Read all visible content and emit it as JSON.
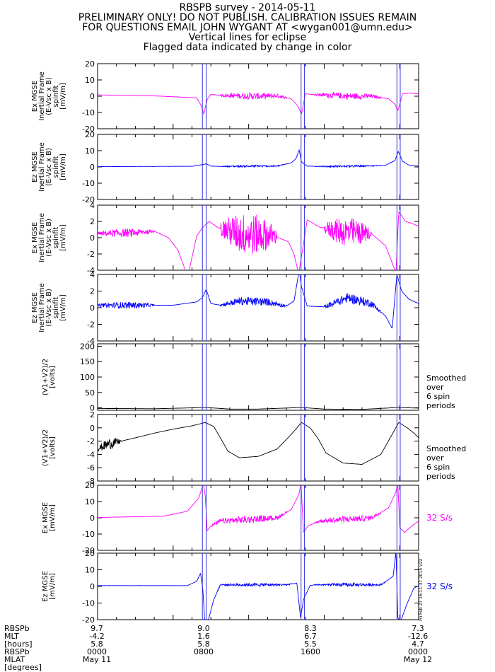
{
  "header": {
    "line1": "RBSPB survey - 2014-05-11",
    "line2": "PRELIMINARY ONLY! DO NOT PUBLISH. CALIBRATION ISSUES REMAIN",
    "line3": "FOR QUESTIONS EMAIL JOHN WYGANT AT <wygan001@umn.edu>",
    "line4": "Vertical lines for eclipse",
    "line5": "Flagged data indicated by change in color"
  },
  "colors": {
    "magenta": "#ff00ff",
    "blue": "#0000ff",
    "black": "#000000",
    "eclipse": "#3333dd"
  },
  "stamp": "Fri Feb 27 16:11:37 2015 v22",
  "eclipse_hours": [
    [
      11.1,
      11.5
    ],
    [
      21.55,
      21.9
    ],
    [
      31.7,
      32.05
    ]
  ],
  "chart_data": [
    {
      "type": "line",
      "ylabel": [
        "Ex MGSE",
        "Inertial Frame",
        "(E-Vsc x B)",
        "spinfit",
        "[mV/m]"
      ],
      "yticks": [
        "20",
        "10",
        "0",
        "-10",
        "-20"
      ],
      "ylim": [
        -20,
        20
      ],
      "color": "magenta",
      "x_hours": [
        0,
        6,
        10.5,
        11.0,
        11.25,
        11.6,
        12.0,
        13,
        17,
        19,
        20.5,
        21.2,
        21.6,
        22.0,
        23,
        27,
        29,
        30.8,
        31.5,
        31.8,
        32.3,
        33,
        34
      ],
      "y": [
        0.8,
        0.2,
        -1.0,
        -6.0,
        -11.0,
        -2.0,
        1.2,
        0.5,
        0.0,
        0.2,
        -1.5,
        -6.0,
        -11.0,
        1.5,
        1.0,
        0.0,
        0.0,
        -1.5,
        -5.0,
        -9.0,
        1.5,
        2.0,
        1.5
      ],
      "noise": [
        [
          13,
          20,
          2.0
        ],
        [
          23,
          30,
          2.0
        ]
      ]
    },
    {
      "type": "line",
      "ylabel": [
        "Ez MGSE",
        "Inertial Frame",
        "(E-Vsc x B)",
        "spinfit",
        "[mV/m]"
      ],
      "yticks": [
        "20",
        "10",
        "0",
        "-10",
        "-20"
      ],
      "ylim": [
        -20,
        20
      ],
      "color": "blue",
      "x_hours": [
        0,
        10,
        11.2,
        11.5,
        12.0,
        13,
        17,
        19,
        20.5,
        21.0,
        21.35,
        21.6,
        22.2,
        24,
        28,
        30.5,
        31.5,
        31.85,
        32.3,
        33,
        34
      ],
      "y": [
        0.2,
        0.4,
        1.5,
        2.0,
        0.5,
        0.3,
        0.5,
        0.5,
        2.5,
        5.0,
        10.5,
        3.0,
        0.5,
        0.3,
        0.5,
        1.0,
        4.0,
        9.5,
        3.5,
        1.0,
        0.5
      ],
      "noise": [
        [
          13,
          20,
          0.6
        ],
        [
          23,
          30,
          0.6
        ]
      ]
    },
    {
      "type": "line",
      "ylabel": [
        "Ex MGSE",
        "Inertial Frame",
        "(E-Vsc x B)",
        "spinfit",
        "[mV/m]"
      ],
      "yticks": [
        "4",
        "2",
        "0",
        "-2",
        "-4"
      ],
      "ylim": [
        -4,
        4
      ],
      "color": "magenta",
      "x_hours": [
        0,
        4,
        6,
        7.5,
        8.5,
        9.3,
        9.6,
        10.5,
        11.1,
        11.8,
        12.8,
        15,
        18.5,
        20.2,
        20.8,
        21.3,
        22.2,
        23.5,
        26,
        29,
        30.5,
        31.0,
        31.6,
        31.9,
        32.6,
        33.2,
        34
      ],
      "y": [
        0.5,
        0.6,
        0.8,
        0.0,
        -1.5,
        -4.0,
        -4.5,
        0.2,
        1.2,
        2.0,
        1.2,
        0.5,
        0.3,
        -0.5,
        -2.0,
        -4.5,
        2.2,
        1.3,
        0.7,
        0.5,
        -1.0,
        -2.5,
        -4.3,
        3.2,
        2.0,
        1.8,
        1.4
      ],
      "noise": [
        [
          0,
          6,
          0.5
        ],
        [
          13,
          19,
          2.6
        ],
        [
          24,
          29,
          1.8
        ]
      ]
    },
    {
      "type": "line",
      "ylabel": [
        "Ez MGSE",
        "Inertial Frame",
        "(E-Vsc x B)",
        "spinfit",
        "[mV/m]"
      ],
      "yticks": [
        "4",
        "2",
        "0",
        "-2",
        "-4"
      ],
      "ylim": [
        -4,
        4
      ],
      "color": "blue",
      "x_hours": [
        0,
        8,
        10.5,
        11.1,
        11.5,
        12.0,
        13,
        15,
        18,
        20.0,
        20.8,
        21.35,
        21.6,
        22.2,
        24,
        26.5,
        29,
        30.5,
        31.2,
        31.7,
        32.2,
        33,
        34
      ],
      "y": [
        0.3,
        0.3,
        0.7,
        1.2,
        2.2,
        0.5,
        0.3,
        0.8,
        0.7,
        0.2,
        0.8,
        4.5,
        2.5,
        0.2,
        0.1,
        1.2,
        0.5,
        -1.0,
        -2.5,
        4.0,
        2.0,
        1.0,
        0.5
      ],
      "noise": [
        [
          0,
          6,
          0.4
        ],
        [
          13,
          20,
          0.5
        ],
        [
          24,
          30,
          0.6
        ]
      ]
    },
    {
      "type": "line",
      "ylabel": [
        "(V1+V2)/2",
        "[volts]"
      ],
      "yticks": [
        "200",
        "150",
        "100",
        "50",
        "0"
      ],
      "ylim": [
        -8,
        208
      ],
      "color": "black",
      "note": [
        "Smoothed",
        "over",
        "6 spin",
        "periods"
      ],
      "x_hours": [
        0,
        6,
        11.5,
        14,
        17,
        21.6,
        24,
        28,
        31.8,
        34
      ],
      "y": [
        -2,
        -3,
        1,
        -4,
        -4,
        1,
        -4,
        -5,
        1,
        -1
      ],
      "noise": []
    },
    {
      "type": "line",
      "ylabel": [
        "(V1+V2)/2",
        "[volts]"
      ],
      "yticks": [
        "2",
        "0",
        "-2",
        "-4",
        "-6",
        "-8"
      ],
      "ylim": [
        -8,
        2
      ],
      "color": "black",
      "note": [
        "Smoothed",
        "over",
        "6 spin",
        "periods"
      ],
      "x_hours": [
        0,
        1,
        2.5,
        4,
        6,
        8,
        10,
        11.4,
        12.3,
        13.0,
        13.8,
        15,
        17,
        19,
        20.5,
        21.6,
        22.5,
        23.3,
        24.2,
        26,
        28,
        30,
        31.9,
        32.8,
        33.5,
        34
      ],
      "y": [
        -3.2,
        -2.5,
        -2.0,
        -1.5,
        -0.8,
        -0.2,
        0.3,
        0.8,
        0.2,
        -1.5,
        -3.5,
        -4.5,
        -4.3,
        -3.2,
        -1.0,
        0.8,
        0.0,
        -1.5,
        -3.8,
        -5.3,
        -5.5,
        -4.0,
        0.8,
        0.0,
        -0.8,
        -1.5
      ],
      "noise": [
        [
          0,
          2.5,
          0.8
        ]
      ]
    },
    {
      "type": "line",
      "ylabel": [
        "Ex MGSE",
        "[mV/m]"
      ],
      "yticks": [
        "20",
        "10",
        "0",
        "-10",
        "-20"
      ],
      "ylim": [
        -20,
        20
      ],
      "color": "magenta",
      "note": [
        "32 S/s"
      ],
      "x_hours": [
        0,
        7,
        9.5,
        10.7,
        11.2,
        11.4,
        11.6,
        12.0,
        13,
        19,
        20.5,
        21.3,
        21.55,
        21.8,
        22.3,
        23.5,
        29,
        30.8,
        31.6,
        31.8,
        32.0,
        32.5,
        33.5,
        34
      ],
      "y": [
        0.2,
        1.0,
        4.0,
        12.0,
        21.0,
        14.0,
        -8.0,
        -5.0,
        -2.0,
        0.0,
        5.0,
        14.0,
        21.0,
        -9.0,
        -5.0,
        -2.0,
        0.0,
        6.0,
        16.0,
        21.0,
        -6.0,
        -9.0,
        -4.0,
        -2.0
      ],
      "noise": [
        [
          12,
          20,
          2.2
        ],
        [
          23,
          30,
          2.0
        ]
      ]
    },
    {
      "type": "line",
      "ylabel": [
        "Ez MGSE",
        "[mV/m]"
      ],
      "yticks": [
        "20",
        "10",
        "0",
        "-10",
        "-20"
      ],
      "ylim": [
        -20,
        20
      ],
      "color": "blue",
      "note": [
        "32 S/s"
      ],
      "x_hours": [
        0,
        9.5,
        10.5,
        10.9,
        11.15,
        11.35,
        11.7,
        12.3,
        13,
        20,
        21.1,
        21.5,
        21.8,
        22.5,
        23,
        30,
        31.3,
        31.6,
        31.8,
        32.1,
        32.8,
        33.5,
        34
      ],
      "y": [
        0.5,
        0.5,
        3.0,
        8.0,
        -2.0,
        -21.0,
        -21.0,
        -8.0,
        1.0,
        1.0,
        2.0,
        -19.0,
        -8.0,
        0.5,
        1.0,
        1.0,
        6.0,
        21.0,
        -19.0,
        -21.0,
        -10.0,
        -1.0,
        0.5
      ],
      "noise": [
        [
          12.5,
          20.5,
          1.0
        ],
        [
          23,
          30.5,
          1.0
        ]
      ]
    }
  ],
  "x_axis": {
    "tick_hours": [
      0,
      2,
      4,
      6,
      8,
      10,
      12,
      14,
      16,
      18,
      20,
      22,
      24,
      26,
      28,
      30,
      32,
      34
    ],
    "row_labels": [
      "RBSPb",
      "MLT",
      "[hours]",
      "RBSPb",
      "MLAT",
      "[degrees]"
    ],
    "columns": [
      {
        "mlt": "9.7",
        "mlat": "-4.2",
        "r": "5.8",
        "time": "0000",
        "date": "May 11"
      },
      {
        "mlt": "9.0",
        "mlat": "1.6",
        "r": "5.8",
        "time": "0800",
        "date": ""
      },
      {
        "mlt": "8.3",
        "mlat": "6.7",
        "r": "5.5",
        "time": "1600",
        "date": ""
      },
      {
        "mlt": "7.3",
        "mlat": "-12.6",
        "r": "4.7",
        "time": "0000",
        "date": "May 12"
      }
    ]
  }
}
